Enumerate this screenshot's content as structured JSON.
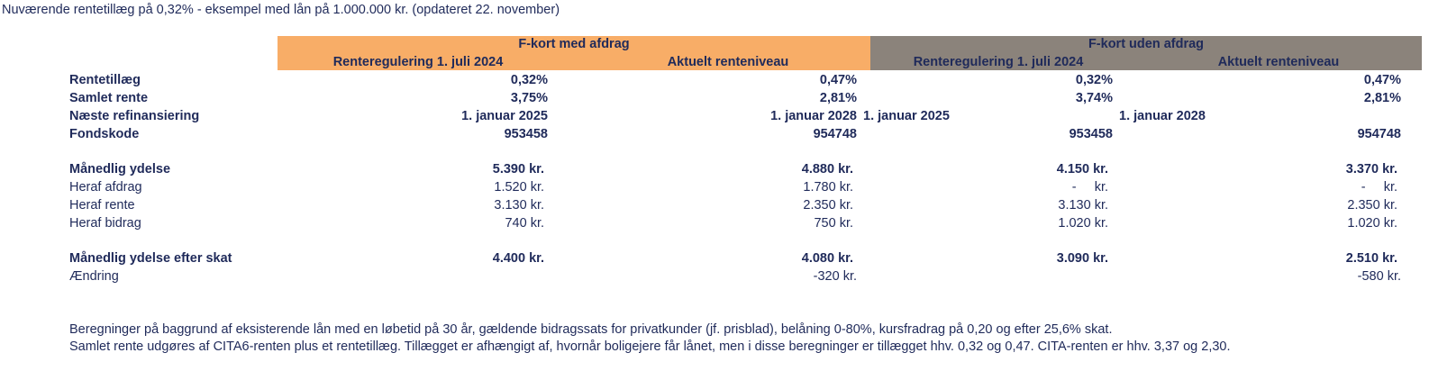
{
  "title": "Nuværende rentetillæg på 0,32% - eksempel med lån på 1.000.000 kr. (opdateret 22. november)",
  "groups": [
    {
      "title": "F-kort med afdrag",
      "cols": [
        "Renteregulering 1. juli 2024",
        "Aktuelt renteniveau"
      ]
    },
    {
      "title": "F-kort uden afdrag",
      "cols": [
        "Renteregulering 1. juli 2024",
        "Aktuelt renteniveau"
      ]
    }
  ],
  "rows": [
    {
      "label": "Rentetillæg",
      "bold": true,
      "values": [
        "0,32%",
        "0,47%",
        "0,32%",
        "0,47%"
      ]
    },
    {
      "label": "Samlet rente",
      "bold": true,
      "values": [
        "3,75%",
        "2,81%",
        "3,74%",
        "2,81%"
      ]
    },
    {
      "label": "Næste refinansiering",
      "bold": true,
      "values": [
        "1. januar 2025",
        "1. januar 2028",
        "1. januar 2025",
        "1. januar 2028"
      ]
    },
    {
      "label": "Fondskode",
      "bold": true,
      "values": [
        "953458",
        "954748",
        "953458",
        "954748"
      ]
    },
    {
      "label": "Månedlig ydelse",
      "bold": true,
      "values": [
        "5.390 kr.",
        "4.880 kr.",
        "4.150 kr.",
        "3.370 kr."
      ]
    },
    {
      "label": "Heraf afdrag",
      "bold": false,
      "values": [
        "1.520 kr.",
        "1.780 kr.",
        "-     kr.",
        "-     kr."
      ]
    },
    {
      "label": "Heraf rente",
      "bold": false,
      "values": [
        "3.130 kr.",
        "2.350 kr.",
        "3.130 kr.",
        "2.350 kr."
      ]
    },
    {
      "label": "Heraf bidrag",
      "bold": false,
      "values": [
        "740 kr.",
        "750 kr.",
        "1.020 kr.",
        "1.020 kr."
      ]
    },
    {
      "label": "Månedlig ydelse efter skat",
      "bold": true,
      "values": [
        "4.400 kr.",
        "4.080 kr.",
        "3.090 kr.",
        "2.510 kr."
      ]
    },
    {
      "label": "Ændring",
      "bold": false,
      "values": [
        "",
        "-320 kr.",
        "",
        "-580 kr."
      ]
    }
  ],
  "notes": [
    "Beregninger på baggrund af eksisterende lån med en løbetid på 30 år, gældende bidragssats for privatkunder (jf. prisblad), belåning 0-80%, kursfradrag på 0,20  og efter 25,6% skat.",
    "Samlet rente udgøres af CITA6-renten plus et rentetillæg. Tillægget er afhængigt af, hvornår boligejere får lånet, men i disse beregninger er tillægget hhv. 0,32 og 0,47. CITA-renten er hhv. 3,37 og 2,30."
  ],
  "colors": {
    "orange_band": "#f8ad67",
    "grey_band": "#8b837b",
    "text": "#1f2a5a"
  }
}
